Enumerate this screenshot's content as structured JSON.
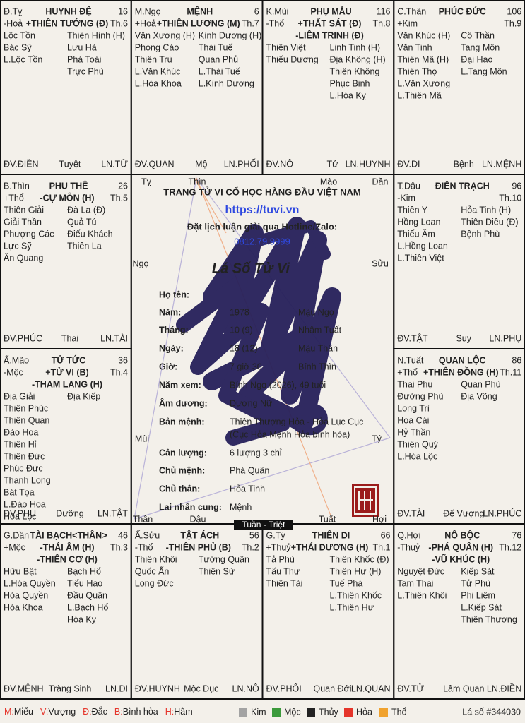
{
  "palette": {
    "r": "#e5352b",
    "g": "#3c9a3c",
    "o": "#f0a22e",
    "s": "#a3a3a3",
    "k": "#222222",
    "b": "#2f49e0"
  },
  "palaces": [
    {
      "branch": "Đ.Tỵ",
      "name": [
        "HUYNH ĐỆ",
        "r"
      ],
      "age": "16",
      "element": "-Hoả",
      "main": [
        [
          "+THIÊN TƯỚNG (Đ)",
          "k"
        ]
      ],
      "month": "Th.6",
      "left": [
        [
          "Lộc Tồn",
          "o"
        ],
        [
          "Bác Sỹ",
          "k"
        ],
        [
          "L.Lộc Tồn",
          "o"
        ]
      ],
      "right": [
        [
          "Thiên Hình (H)",
          "r"
        ],
        [
          "Lưu Hà",
          "k"
        ],
        [
          "Phá Toái",
          "o"
        ],
        [
          "Trực Phù",
          "s"
        ]
      ],
      "footer": [
        "ĐV.ĐIỀN",
        "Tuyệt",
        "LN.TỬ"
      ]
    },
    {
      "branch": "M.Ngọ",
      "name": [
        "MỆNH",
        "r"
      ],
      "age": "6",
      "element": "+Hoả",
      "main": [
        [
          "+THIÊN LƯƠNG (M)",
          "g"
        ]
      ],
      "month": "Th.7",
      "left": [
        [
          "Văn Xương (H)",
          "s"
        ],
        [
          "Phong Cáo",
          "o"
        ],
        [
          "Thiên Trù",
          "o"
        ],
        [
          "L.Văn Khúc",
          "k"
        ],
        [
          "L.Hóa Khoa",
          "k"
        ]
      ],
      "right": [
        [
          "Kình Dương (H)",
          "s"
        ],
        [
          "Thái Tuế",
          "o"
        ],
        [
          "Quan Phủ",
          "r"
        ],
        [
          "L.Thái Tuế",
          "r"
        ],
        [
          "L.Kình Dương",
          "s"
        ]
      ],
      "footer": [
        "ĐV.QUAN",
        "Mộ",
        "LN.PHỐI"
      ]
    },
    {
      "branch": "K.Mùi",
      "name": [
        "PHỤ MẪU",
        "o"
      ],
      "age": "116",
      "element": "-Thổ",
      "main": [
        [
          "+THẤT SÁT (Đ)",
          "s"
        ],
        [
          "-LIÊM TRINH (Đ)",
          "r"
        ]
      ],
      "month": "Th.8",
      "left": [
        [
          "Thiên Việt",
          "r"
        ],
        [
          "Thiếu Dương",
          "o"
        ]
      ],
      "right": [
        [
          "Linh Tinh (H)",
          "r"
        ],
        [
          "Địa Không (H)",
          "r"
        ],
        [
          "Thiên Không",
          "o"
        ],
        [
          "Phục Binh",
          "r"
        ],
        [
          "L.Hóa Kỵ",
          "k"
        ]
      ],
      "footer": [
        "ĐV.NÔ",
        "Tử",
        "LN.HUYNH"
      ]
    },
    {
      "branch": "C.Thân",
      "name": [
        "PHÚC ĐỨC",
        "s"
      ],
      "age": "106",
      "element": "+Kim",
      "main": [],
      "month": "Th.9",
      "left": [
        [
          "Văn Khúc (H)",
          "k"
        ],
        [
          "Văn Tinh",
          "o"
        ],
        [
          "Thiên Mã (H)",
          "r"
        ],
        [
          "Thiên Thọ",
          "o"
        ],
        [
          "L.Văn Xương",
          "s"
        ],
        [
          "L.Thiên Mã",
          "r"
        ]
      ],
      "right": [
        [
          "Cô Thần",
          "o"
        ],
        [
          "Tang Môn",
          "g"
        ],
        [
          "Đại Hao",
          "r"
        ],
        [
          "L.Tang Môn",
          "g"
        ]
      ],
      "footer": [
        "ĐV.DI",
        "Bệnh",
        "LN.MỆNH"
      ]
    },
    {
      "branch": "T.Dậu",
      "name": [
        "ĐIỀN TRẠCH",
        "s"
      ],
      "age": "96",
      "element": "-Kim",
      "main": [],
      "month": "Th.10",
      "left": [
        [
          "Thiên Y",
          "k"
        ],
        [
          "Hồng Loan",
          "k"
        ],
        [
          "Thiếu Âm",
          "k"
        ],
        [
          "L.Hồng Loan",
          "k"
        ],
        [
          "L.Thiên Việt",
          "r"
        ]
      ],
      "right": [
        [
          "Hỏa Tinh (H)",
          "r"
        ],
        [
          "Thiên Diêu (Đ)",
          "k"
        ],
        [
          "Bệnh Phù",
          "o"
        ]
      ],
      "footer": [
        "ĐV.TẬT",
        "Suy",
        "LN.PHỤ"
      ]
    },
    {
      "branch": "N.Tuất",
      "name": [
        "QUAN LỘC",
        "o"
      ],
      "age": "86",
      "element": "+Thổ",
      "main": [
        [
          "+THIÊN ĐỒNG (H)",
          "k"
        ]
      ],
      "month": "Th.11",
      "left": [
        [
          "Thai Phụ",
          "s"
        ],
        [
          "Đường Phù",
          "g"
        ],
        [
          "Long Trì",
          "k"
        ],
        [
          "Hoa Cái",
          "s"
        ],
        [
          "Hỷ Thần",
          "r"
        ],
        [
          "Thiên Quý",
          "o"
        ],
        [
          "L.Hóa Lộc",
          "g"
        ]
      ],
      "right": [
        [
          "Quan Phù",
          "r"
        ],
        [
          "Địa Võng",
          "s"
        ]
      ],
      "footer": [
        "ĐV.TÀI",
        "Đế Vượng",
        "LN.PHÚC"
      ]
    },
    {
      "branch": "Q.Hợi",
      "name": [
        "NÔ BỘC",
        "k"
      ],
      "age": "76",
      "element": "-Thuỷ",
      "main": [
        [
          "-PHÁ QUÂN (H)",
          "k"
        ],
        [
          "-VŨ KHÚC (H)",
          "s"
        ]
      ],
      "month": "Th.12",
      "left": [
        [
          "Nguyệt Đức",
          "r"
        ],
        [
          "Tam Thai",
          "k"
        ],
        [
          "L.Thiên Khôi",
          "r"
        ]
      ],
      "right": [
        [
          "Kiếp Sát",
          "r"
        ],
        [
          "Tử Phù",
          "s"
        ],
        [
          "Phi Liêm",
          "r"
        ],
        [
          "L.Kiếp Sát",
          "r"
        ],
        [
          "Thiên Thương",
          "o"
        ]
      ],
      "footer": [
        "ĐV.TỬ",
        "Lâm Quan",
        "LN.ĐIỀN"
      ]
    },
    {
      "branch": "G.Tý",
      "name": [
        "THIÊN DI",
        "k"
      ],
      "age": "66",
      "element": "+Thuỷ",
      "main": [
        [
          "+THÁI DƯƠNG (H)",
          "r"
        ]
      ],
      "month": "Th.1",
      "left": [
        [
          "Tả Phù",
          "o"
        ],
        [
          "Tấu Thư",
          "s"
        ],
        [
          "Thiên Tài",
          "o"
        ]
      ],
      "right": [
        [
          "Thiên Khốc (Đ)",
          "k"
        ],
        [
          "Thiên Hư (H)",
          "k"
        ],
        [
          "Tuế Phá",
          "r"
        ],
        [
          "L.Thiên Khốc",
          "k"
        ],
        [
          "L.Thiên Hư",
          "k"
        ]
      ],
      "footer": [
        "ĐV.PHỐI",
        "Quan Đới",
        "LN.QUAN"
      ]
    },
    {
      "branch": "Ấ.Sửu",
      "name": [
        "TẬT ÁCH",
        "o"
      ],
      "age": "56",
      "element": "-Thổ",
      "main": [
        [
          "-THIÊN PHỦ (B)",
          "o"
        ]
      ],
      "month": "Th.2",
      "left": [
        [
          "Thiên Khôi",
          "r"
        ],
        [
          "Quốc Ấn",
          "o"
        ],
        [
          "Long Đức",
          "k"
        ]
      ],
      "right": [
        [
          "Tướng Quân",
          "g"
        ],
        [
          "Thiên Sứ",
          "k"
        ]
      ],
      "footer": [
        "ĐV.HUYNH",
        "Mộc Dục",
        "LN.NÔ"
      ]
    },
    {
      "branch": "G.Dần",
      "name": [
        "TÀI BẠCH<THÂN>",
        "g"
      ],
      "age": "46",
      "element": "+Mộc",
      "main": [
        [
          "-THÁI ÂM (H)",
          "k"
        ],
        [
          "-THIÊN CƠ (H)",
          "g"
        ]
      ],
      "month": "Th.3",
      "left": [
        [
          "Hữu Bật",
          "k"
        ],
        [
          "L.Hóa Quyền",
          "k"
        ],
        [
          "Hóa Quyền",
          "k"
        ],
        [
          "Hóa Khoa",
          "k"
        ]
      ],
      "right": [
        [
          "Bạch Hổ",
          "s"
        ],
        [
          "Tiểu Hao",
          "r"
        ],
        [
          "Đầu Quân",
          "r"
        ],
        [
          "L.Bạch Hổ",
          "s"
        ],
        [
          "Hóa Kỵ",
          "k"
        ]
      ],
      "footer": [
        "ĐV.MỆNH",
        "Tràng Sinh",
        "LN.DI"
      ]
    },
    {
      "branch": "Ấ.Mão",
      "name": [
        "TỬ TỨC",
        "g"
      ],
      "age": "36",
      "element": "-Mộc",
      "main": [
        [
          "+TỬ VI (B)",
          "o"
        ],
        [
          "-THAM LANG (H)",
          "k"
        ]
      ],
      "month": "Th.4",
      "left": [
        [
          "Địa Giải",
          "o"
        ],
        [
          "Thiên Phúc",
          "o"
        ],
        [
          "Thiên Quan",
          "r"
        ],
        [
          "Đào Hoa",
          "g"
        ],
        [
          "Thiên Hỉ",
          "k"
        ],
        [
          "Thiên Đức",
          "o"
        ],
        [
          "Phúc Đức",
          "o"
        ],
        [
          "Thanh Long",
          "k"
        ],
        [
          "Bát Tọa",
          "g"
        ],
        [
          "L.Đào Hoa",
          "g"
        ],
        [
          "Hóa Lộc",
          "g"
        ]
      ],
      "right": [
        [
          "Địa Kiếp",
          "r"
        ]
      ],
      "footer": [
        "ĐV.PHU",
        "Dưỡng",
        "LN.TẬT"
      ]
    },
    {
      "branch": "B.Thìn",
      "name": [
        "PHU THÊ",
        "o"
      ],
      "age": "26",
      "element": "+Thổ",
      "main": [
        [
          "-CỰ MÔN (H)",
          "k"
        ]
      ],
      "month": "Th.5",
      "left": [
        [
          "Thiên Giải",
          "r"
        ],
        [
          "Giải Thần",
          "g"
        ],
        [
          "Phượng Các",
          "o"
        ],
        [
          "Lực Sỹ",
          "k"
        ],
        [
          "Ân Quang",
          "g"
        ]
      ],
      "right": [
        [
          "Đà La (Đ)",
          "s"
        ],
        [
          "Quả Tú",
          "o"
        ],
        [
          "Điếu Khách",
          "r"
        ],
        [
          "Thiên La",
          "s"
        ]
      ],
      "footer": [
        "ĐV.PHÚC",
        "Thai",
        "LN.TÀI"
      ]
    }
  ],
  "center": {
    "branches": [
      "Tỵ",
      "Thìn",
      "Mão",
      "Dần",
      "Ngọ",
      "Sửu",
      "Mùi",
      "Tý",
      "Thân",
      "Dậu",
      "Tuất",
      "Hợi"
    ],
    "site_title": "TRANG TỬ VI CỔ HỌC HÀNG ĐẦU VIỆT NAM",
    "url": "https://tuvi.vn",
    "hotline_text": "Đặt lịch luận giải qua Hotline/Zalo:",
    "phone": "0812.79.9999",
    "chart_title": "Lá Số Tử Vi",
    "info": [
      {
        "label": "Họ tên:"
      },
      {
        "label": "Năm:",
        "values": [
          "1978",
          "Mậu Ngọ"
        ]
      },
      {
        "label": "Tháng:",
        "values": [
          "10 (9)",
          "Nhâm Tuất"
        ]
      },
      {
        "label": "Ngày:",
        "values": [
          "18 (12)",
          "Mậu Thân"
        ]
      },
      {
        "label": "Giờ:",
        "values": [
          "7 giờ 30",
          "Bính Thìn"
        ]
      },
      {
        "label": "Năm xem:",
        "values": [
          "Bính Ngọ (2026), 49 tuổi"
        ]
      },
      {
        "label": "Âm dương:",
        "values": [
          "Dương Nữ"
        ]
      },
      {
        "label": "Bản mệnh:",
        "lines": [
          "Thiên Thượng Hỏa - Hỏa Lục Cục",
          "(Cục Hỏa Mệnh Hỏa bình hòa)"
        ]
      },
      {
        "label": "Cân lượng:",
        "values": [
          "6 lượng 3 chỉ"
        ]
      },
      {
        "label": "Chủ mệnh:",
        "values": [
          "Phá Quân"
        ]
      },
      {
        "label": "Chủ thân:",
        "values": [
          "Hỏa Tinh"
        ]
      },
      {
        "label": "Lai nhân cung:",
        "values": [
          "Mệnh"
        ]
      }
    ],
    "tuan_triet": "Tuần - Triệt"
  },
  "legend": {
    "strengths": [
      [
        "M:",
        "Miếu"
      ],
      [
        "V:",
        "Vượng"
      ],
      [
        "Đ:",
        "Đắc"
      ],
      [
        "B:",
        "Bình hòa"
      ],
      [
        "H:",
        "Hãm"
      ]
    ],
    "elements": [
      [
        "Kim",
        "s"
      ],
      [
        "Mộc",
        "g"
      ],
      [
        "Thủy",
        "k"
      ],
      [
        "Hỏa",
        "r"
      ],
      [
        "Thổ",
        "o"
      ]
    ],
    "chart_no": "Lá số #344030"
  }
}
